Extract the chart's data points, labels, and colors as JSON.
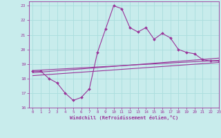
{
  "xlabel": "Windchill (Refroidissement éolien,°C)",
  "background_color": "#c8ecec",
  "line_color": "#993399",
  "grid_color": "#aadddd",
  "xlim": [
    -0.5,
    23
  ],
  "ylim": [
    16,
    23.3
  ],
  "xticks": [
    0,
    1,
    2,
    3,
    4,
    5,
    6,
    7,
    8,
    9,
    10,
    11,
    12,
    13,
    14,
    15,
    16,
    17,
    18,
    19,
    20,
    21,
    22,
    23
  ],
  "yticks": [
    16,
    17,
    18,
    19,
    20,
    21,
    22,
    23
  ],
  "hours": [
    0,
    1,
    2,
    3,
    4,
    5,
    6,
    7,
    8,
    9,
    10,
    11,
    12,
    13,
    14,
    15,
    16,
    17,
    18,
    19,
    20,
    21,
    22,
    23
  ],
  "line1": [
    18.5,
    18.5,
    18.0,
    17.7,
    17.0,
    16.5,
    16.7,
    17.3,
    19.8,
    21.4,
    23.0,
    22.8,
    21.5,
    21.2,
    21.5,
    20.7,
    21.1,
    20.8,
    20.0,
    19.8,
    19.7,
    19.3,
    19.2,
    19.2
  ],
  "line2_x": [
    0,
    23
  ],
  "line2_y": [
    18.55,
    19.25
  ],
  "line3_x": [
    0,
    23
  ],
  "line3_y": [
    18.4,
    19.4
  ],
  "line4_x": [
    0,
    23
  ],
  "line4_y": [
    18.2,
    19.1
  ]
}
